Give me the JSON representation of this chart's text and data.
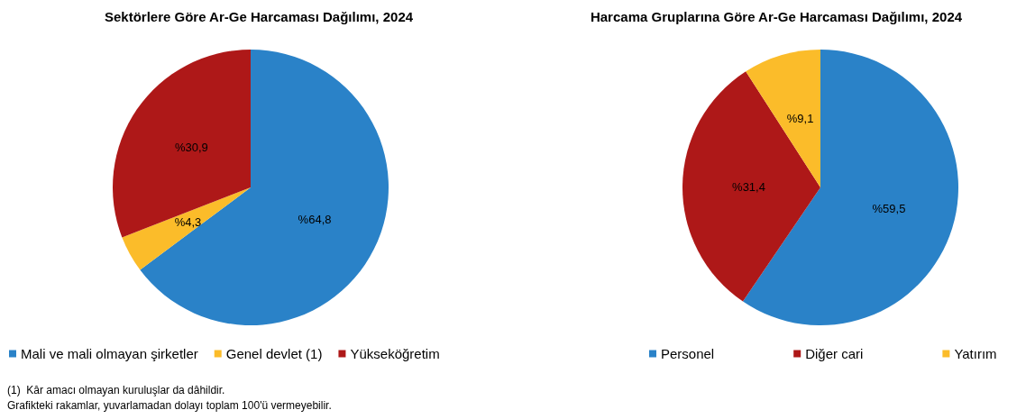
{
  "chart_data": [
    {
      "type": "pie",
      "title": "Sektörlere Göre Ar-Ge Harcaması Dağılımı, 2024",
      "categories": [
        "Mali ve mali olmayan şirketler",
        "Genel devlet (1)",
        "Yükseköğretim"
      ],
      "values": [
        64.8,
        4.3,
        30.9
      ],
      "colors": [
        "#2a82c8",
        "#fbbc2a",
        "#ae1818"
      ],
      "value_labels": [
        "%64,8",
        "%4,3",
        "%30,9"
      ],
      "legend": "bottom",
      "annotations": [
        "(1)  Kâr amacı olmayan kuruluşlar da dâhildir.",
        "Grafikteki rakamlar, yuvarlamadan dolayı toplam 100'ü vermeyebilir."
      ]
    },
    {
      "type": "pie",
      "title": "Harcama Gruplarına Göre Ar-Ge Harcaması Dağılımı, 2024",
      "categories": [
        "Personel",
        "Diğer cari",
        "Yatırım"
      ],
      "values": [
        59.5,
        31.4,
        9.1
      ],
      "colors": [
        "#2a82c8",
        "#ae1818",
        "#fbbc2a"
      ],
      "value_labels": [
        "%59,5",
        "%31,4",
        "%9,1"
      ],
      "legend": "bottom"
    }
  ]
}
